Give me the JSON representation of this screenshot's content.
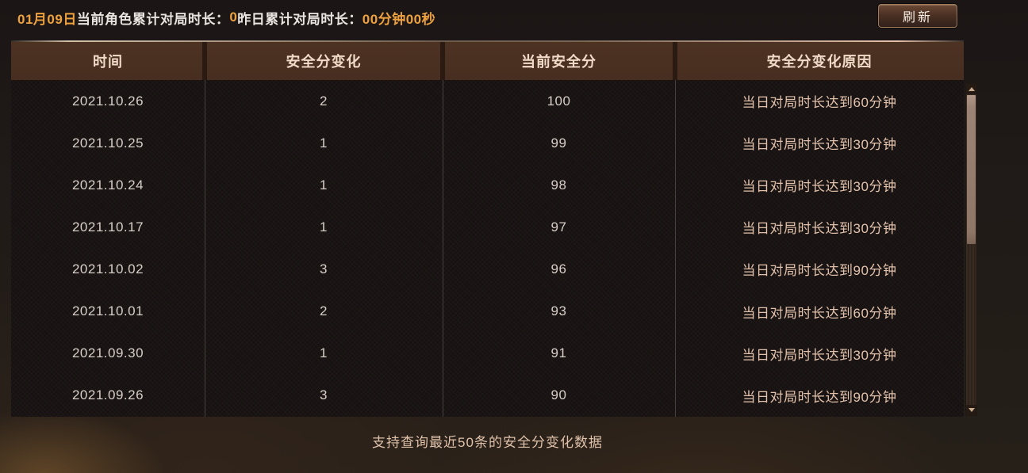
{
  "topbar": {
    "date_label": "01月09日",
    "today_label": "当前角色累计对局时长：",
    "today_value": "0",
    "yesterday_label": "昨日累计对局时长：",
    "yesterday_value": "00分钟00秒",
    "refresh_label": "刷新"
  },
  "table": {
    "columns": [
      "时间",
      "安全分变化",
      "当前安全分",
      "安全分变化原因"
    ],
    "rows": [
      [
        "2021.10.26",
        "2",
        "100",
        "当日对局时长达到60分钟"
      ],
      [
        "2021.10.25",
        "1",
        "99",
        "当日对局时长达到30分钟"
      ],
      [
        "2021.10.24",
        "1",
        "98",
        "当日对局时长达到30分钟"
      ],
      [
        "2021.10.17",
        "1",
        "97",
        "当日对局时长达到30分钟"
      ],
      [
        "2021.10.02",
        "3",
        "96",
        "当日对局时长达到90分钟"
      ],
      [
        "2021.10.01",
        "2",
        "93",
        "当日对局时长达到60分钟"
      ],
      [
        "2021.09.30",
        "1",
        "91",
        "当日对局时长达到30分钟"
      ],
      [
        "2021.09.26",
        "3",
        "90",
        "当日对局时长达到90分钟"
      ]
    ]
  },
  "footer": {
    "note": "支持查询最近50条的安全分变化数据"
  },
  "colors": {
    "accent_orange": "#eda13f",
    "header_bg": "#4a2f21",
    "header_text": "#f1dbc8",
    "cell_text": "#d9cfc9",
    "reason_text": "#e3c2ac",
    "scrollbar_thumb": "#9b8376"
  }
}
